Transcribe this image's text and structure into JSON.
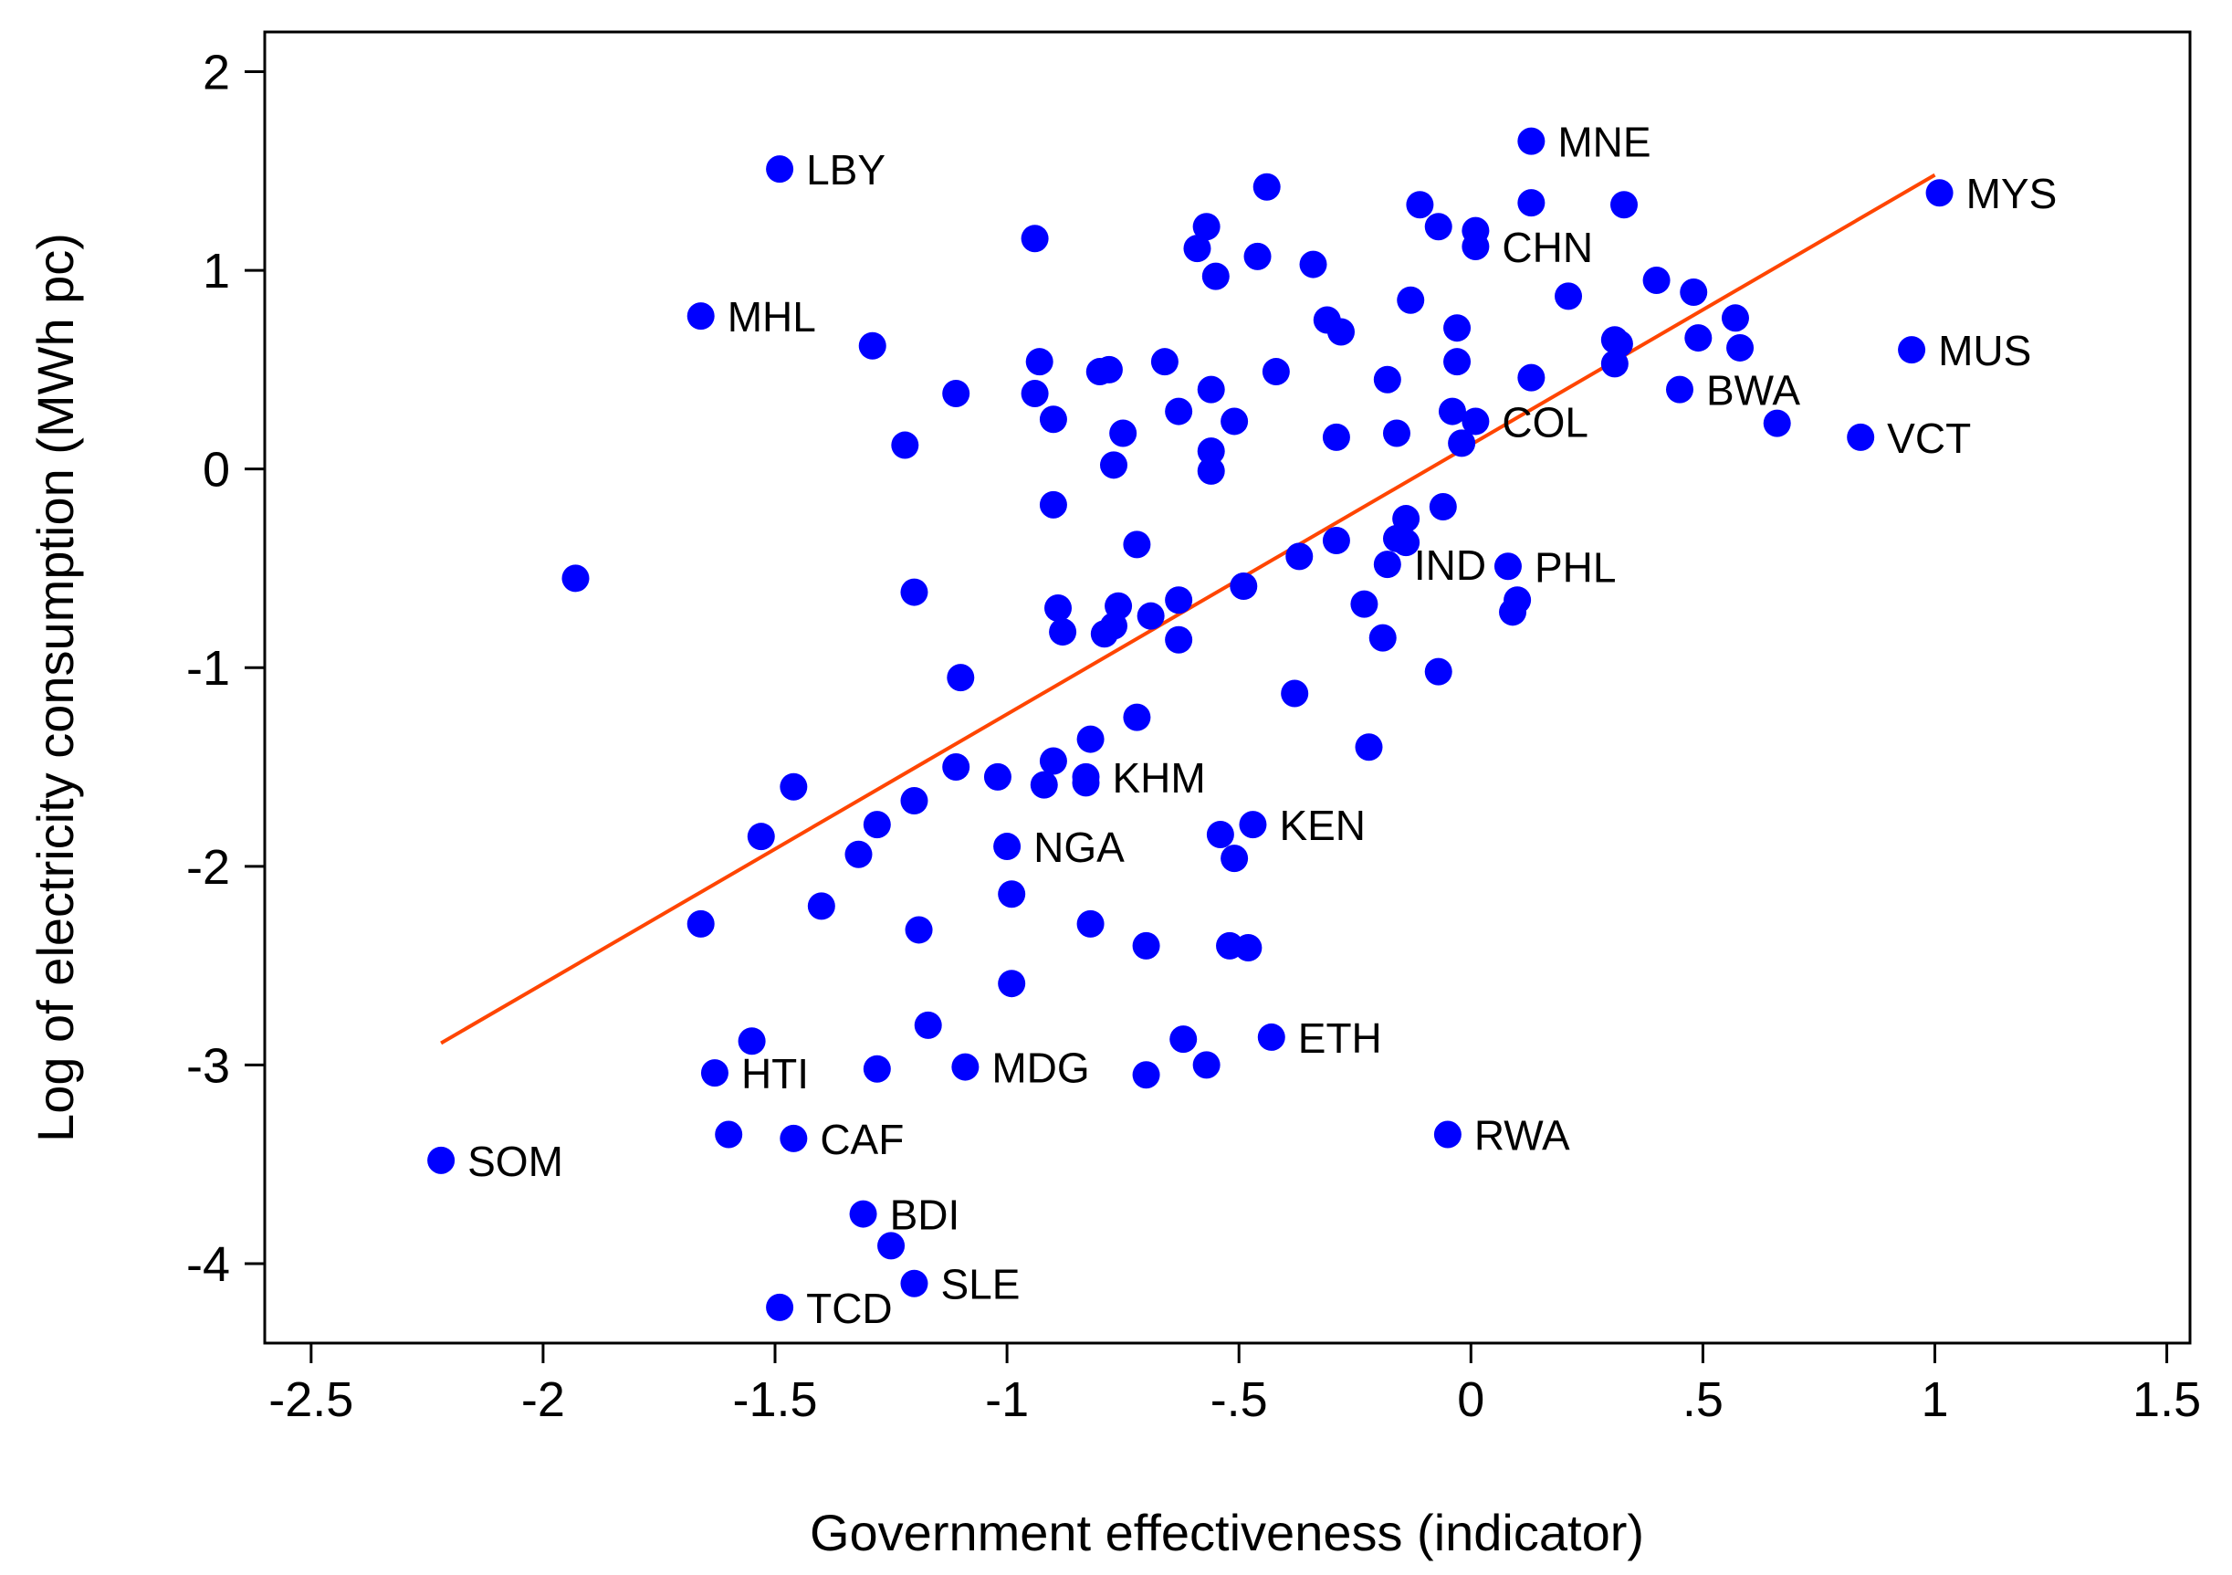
{
  "chart_data": {
    "type": "scatter",
    "xlabel": "Government effectiveness (indicator)",
    "ylabel": "Log of electricity consumption (MWh pc)",
    "xlim": [
      -2.6,
      1.55
    ],
    "ylim": [
      -4.4,
      2.2
    ],
    "xticks": [
      {
        "value": -2.5,
        "label": "-2.5"
      },
      {
        "value": -2,
        "label": "-2"
      },
      {
        "value": -1.5,
        "label": "-1.5"
      },
      {
        "value": -1,
        "label": "-1"
      },
      {
        "value": -0.5,
        "label": "-.5"
      },
      {
        "value": 0,
        "label": "0"
      },
      {
        "value": 0.5,
        "label": ".5"
      },
      {
        "value": 1,
        "label": "1"
      },
      {
        "value": 1.5,
        "label": "1.5"
      }
    ],
    "yticks": [
      {
        "value": 2,
        "label": "2"
      },
      {
        "value": 1,
        "label": "1"
      },
      {
        "value": 0,
        "label": "0"
      },
      {
        "value": -1,
        "label": "-1"
      },
      {
        "value": -2,
        "label": "-2"
      },
      {
        "value": -3,
        "label": "-3"
      },
      {
        "value": -4,
        "label": "-4"
      }
    ],
    "grid": false,
    "point_color": "#0000ff",
    "fit_line_color": "#ff4500",
    "fit_line": {
      "x": [
        -2.22,
        1.0
      ],
      "y": [
        -2.89,
        1.48
      ]
    },
    "points": [
      {
        "x": -2.22,
        "y": -3.48,
        "label": "SOM"
      },
      {
        "x": -1.93,
        "y": -0.55
      },
      {
        "x": -1.66,
        "y": 0.77,
        "label": "MHL"
      },
      {
        "x": -1.66,
        "y": -2.29
      },
      {
        "x": -1.63,
        "y": -3.04,
        "label": "HTI"
      },
      {
        "x": -1.6,
        "y": -3.35
      },
      {
        "x": -1.55,
        "y": -2.88
      },
      {
        "x": -1.53,
        "y": -1.85
      },
      {
        "x": -1.49,
        "y": 1.51,
        "label": "LBY"
      },
      {
        "x": -1.49,
        "y": -4.22,
        "label": "TCD"
      },
      {
        "x": -1.46,
        "y": -1.6
      },
      {
        "x": -1.46,
        "y": -3.37,
        "label": "CAF"
      },
      {
        "x": -1.4,
        "y": -2.2
      },
      {
        "x": -1.32,
        "y": -1.94
      },
      {
        "x": -1.31,
        "y": -3.75,
        "label": "BDI"
      },
      {
        "x": -1.29,
        "y": 0.62
      },
      {
        "x": -1.28,
        "y": -1.79
      },
      {
        "x": -1.28,
        "y": -3.02
      },
      {
        "x": -1.25,
        "y": -3.91
      },
      {
        "x": -1.22,
        "y": 0.12
      },
      {
        "x": -1.2,
        "y": -4.1,
        "label": "SLE"
      },
      {
        "x": -1.2,
        "y": -1.67
      },
      {
        "x": -1.2,
        "y": -0.62
      },
      {
        "x": -1.19,
        "y": -2.32
      },
      {
        "x": -1.17,
        "y": -2.8
      },
      {
        "x": -1.11,
        "y": 0.38
      },
      {
        "x": -1.11,
        "y": -1.5
      },
      {
        "x": -1.1,
        "y": -1.05
      },
      {
        "x": -1.09,
        "y": -3.01,
        "label": "MDG"
      },
      {
        "x": -1.02,
        "y": -1.55
      },
      {
        "x": -1.0,
        "y": -1.9,
        "label": "NGA"
      },
      {
        "x": -0.99,
        "y": -2.14
      },
      {
        "x": -0.99,
        "y": -2.59
      },
      {
        "x": -0.94,
        "y": 1.16
      },
      {
        "x": -0.94,
        "y": 0.38
      },
      {
        "x": -0.93,
        "y": 0.54
      },
      {
        "x": -0.92,
        "y": -1.59
      },
      {
        "x": -0.9,
        "y": -1.47
      },
      {
        "x": -0.9,
        "y": 0.25
      },
      {
        "x": -0.9,
        "y": -0.18
      },
      {
        "x": -0.89,
        "y": -0.7
      },
      {
        "x": -0.88,
        "y": -0.82
      },
      {
        "x": -0.83,
        "y": -1.55,
        "label": "KHM"
      },
      {
        "x": -0.83,
        "y": -1.58
      },
      {
        "x": -0.82,
        "y": -1.36
      },
      {
        "x": -0.82,
        "y": -2.29
      },
      {
        "x": -0.8,
        "y": 0.49
      },
      {
        "x": -0.79,
        "y": -0.83
      },
      {
        "x": -0.78,
        "y": 0.5
      },
      {
        "x": -0.77,
        "y": 0.02
      },
      {
        "x": -0.77,
        "y": -0.79
      },
      {
        "x": -0.76,
        "y": -0.69
      },
      {
        "x": -0.75,
        "y": 0.18
      },
      {
        "x": -0.72,
        "y": -0.38
      },
      {
        "x": -0.72,
        "y": -1.25
      },
      {
        "x": -0.7,
        "y": -2.4
      },
      {
        "x": -0.7,
        "y": -3.05
      },
      {
        "x": -0.69,
        "y": -0.74
      },
      {
        "x": -0.66,
        "y": 0.54
      },
      {
        "x": -0.63,
        "y": 0.29
      },
      {
        "x": -0.63,
        "y": -0.66
      },
      {
        "x": -0.63,
        "y": -0.86
      },
      {
        "x": -0.62,
        "y": -2.87
      },
      {
        "x": -0.59,
        "y": 1.11
      },
      {
        "x": -0.57,
        "y": 1.22
      },
      {
        "x": -0.57,
        "y": -3.0
      },
      {
        "x": -0.56,
        "y": 0.4
      },
      {
        "x": -0.56,
        "y": 0.09
      },
      {
        "x": -0.56,
        "y": -0.01
      },
      {
        "x": -0.55,
        "y": 0.97
      },
      {
        "x": -0.54,
        "y": -1.84
      },
      {
        "x": -0.52,
        "y": -2.4
      },
      {
        "x": -0.51,
        "y": 0.24
      },
      {
        "x": -0.51,
        "y": -1.96
      },
      {
        "x": -0.49,
        "y": -0.59
      },
      {
        "x": -0.48,
        "y": -2.41
      },
      {
        "x": -0.47,
        "y": -1.79,
        "label": "KEN"
      },
      {
        "x": -0.46,
        "y": 1.07
      },
      {
        "x": -0.44,
        "y": 1.42
      },
      {
        "x": -0.43,
        "y": -2.86,
        "label": "ETH"
      },
      {
        "x": -0.42,
        "y": 0.49
      },
      {
        "x": -0.38,
        "y": -1.13
      },
      {
        "x": -0.37,
        "y": -0.44
      },
      {
        "x": -0.34,
        "y": 1.03
      },
      {
        "x": -0.31,
        "y": 0.75
      },
      {
        "x": -0.29,
        "y": 0.16
      },
      {
        "x": -0.29,
        "y": -0.36
      },
      {
        "x": -0.28,
        "y": 0.69
      },
      {
        "x": -0.23,
        "y": -0.68
      },
      {
        "x": -0.22,
        "y": -1.4
      },
      {
        "x": -0.19,
        "y": -0.85
      },
      {
        "x": -0.18,
        "y": 0.45
      },
      {
        "x": -0.18,
        "y": -0.48,
        "label": "IND"
      },
      {
        "x": -0.16,
        "y": 0.18
      },
      {
        "x": -0.16,
        "y": -0.35
      },
      {
        "x": -0.14,
        "y": -0.25
      },
      {
        "x": -0.14,
        "y": -0.37
      },
      {
        "x": -0.13,
        "y": 0.85
      },
      {
        "x": -0.11,
        "y": 1.33
      },
      {
        "x": -0.07,
        "y": 1.22
      },
      {
        "x": -0.07,
        "y": -1.02
      },
      {
        "x": -0.06,
        "y": -0.19
      },
      {
        "x": -0.05,
        "y": -3.35,
        "label": "RWA"
      },
      {
        "x": -0.04,
        "y": 0.29
      },
      {
        "x": -0.03,
        "y": 0.71
      },
      {
        "x": -0.03,
        "y": 0.54
      },
      {
        "x": -0.02,
        "y": 0.13
      },
      {
        "x": 0.01,
        "y": 1.2
      },
      {
        "x": 0.01,
        "y": 1.12,
        "label": "CHN"
      },
      {
        "x": 0.01,
        "y": 0.24,
        "label": "COL"
      },
      {
        "x": 0.08,
        "y": -0.49,
        "label": "PHL"
      },
      {
        "x": 0.09,
        "y": -0.72
      },
      {
        "x": 0.1,
        "y": -0.66
      },
      {
        "x": 0.13,
        "y": 1.65,
        "label": "MNE"
      },
      {
        "x": 0.13,
        "y": 1.34
      },
      {
        "x": 0.13,
        "y": 0.46
      },
      {
        "x": 0.21,
        "y": 0.87
      },
      {
        "x": 0.31,
        "y": 0.53
      },
      {
        "x": 0.31,
        "y": 0.65
      },
      {
        "x": 0.32,
        "y": 0.63
      },
      {
        "x": 0.33,
        "y": 1.33
      },
      {
        "x": 0.4,
        "y": 0.95
      },
      {
        "x": 0.45,
        "y": 0.4,
        "label": "BWA"
      },
      {
        "x": 0.48,
        "y": 0.89
      },
      {
        "x": 0.49,
        "y": 0.66
      },
      {
        "x": 0.57,
        "y": 0.76
      },
      {
        "x": 0.58,
        "y": 0.61
      },
      {
        "x": 0.66,
        "y": 0.23
      },
      {
        "x": 0.84,
        "y": 0.16,
        "label": "VCT"
      },
      {
        "x": 0.95,
        "y": 0.6,
        "label": "MUS"
      },
      {
        "x": 1.01,
        "y": 1.39,
        "label": "MYS"
      }
    ]
  }
}
